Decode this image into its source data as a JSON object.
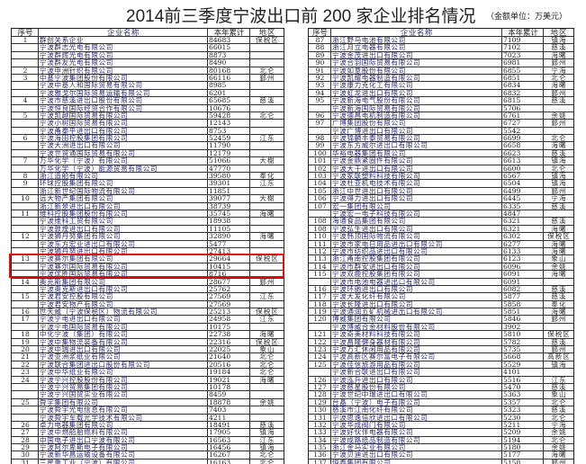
{
  "title": "2014前三季度宁波出口前 200 家企业排名情况",
  "unit_note": "（金额单位：万美元）",
  "columns": [
    "序号",
    "企业名称",
    "本年累计",
    "地区"
  ],
  "highlight_color": "#e01010",
  "left_rows": [
    [
      "1",
      "群创关系企业",
      "84683",
      "保税区"
    ],
    [
      "",
      "宁波群志光电有限公司",
      "66015",
      ""
    ],
    [
      "",
      "宁波群辉光电有限公司",
      "8873",
      ""
    ],
    [
      "",
      "宁波群友光电有限公司",
      "8490",
      ""
    ],
    [
      "2",
      "宁波申洲针织有限公司",
      "80168",
      "北仑"
    ],
    [
      "3",
      "中基宁波集团股份有限公司",
      "66116",
      "鄞州"
    ],
    [
      "",
      "宁波中基人和国际贸易有限公司",
      "8985",
      ""
    ],
    [
      "",
      "宁波雅戈尔国际贸易运输有限公司",
      "6201",
      ""
    ],
    [
      "4",
      "宁波市慈溪进出口股份有限公司",
      "65685",
      "慈溪"
    ],
    [
      "",
      "宁波恒良国际经贸合作有限公司",
      "10676",
      ""
    ],
    [
      "5",
      "宁波凯越国际贸易有限公司",
      "59428",
      "北仑"
    ],
    [
      "",
      "宁波小树国际贸易有限公司",
      "12143",
      ""
    ],
    [
      "",
      "宁波甬泰平进出口有限公司",
      "8753",
      ""
    ],
    [
      "6",
      "宁波海田控股集团有限公司",
      "52459",
      "江东"
    ],
    [
      "",
      "宁波大洲进出口有限公司",
      "11790",
      ""
    ],
    [
      "",
      "宁波世贸通国际贸易有限公司",
      "12179",
      ""
    ],
    [
      "7",
      "万华化学（宁波）有限公司",
      "51066",
      "大榭"
    ],
    [
      "",
      "万华化学（宁波）能源贸易有限公司",
      "47770",
      ""
    ],
    [
      "8",
      "浙江造船有限公司",
      "39580",
      "奉化"
    ],
    [
      "9",
      "环球控股集团有限公司",
      "39301",
      "江东"
    ],
    [
      "",
      "浙江新世纪国际物流有限公司",
      "11851",
      ""
    ],
    [
      "10",
      "远大物产集团有限公司",
      "39077",
      "大榭"
    ],
    [
      "",
      "浙江新景进出口有限公司",
      "38739",
      ""
    ],
    [
      "11",
      "维科控股集团股份有限公司",
      "35745",
      "海曙"
    ],
    [
      "",
      "宁波维科工贸有限公司",
      "18938",
      ""
    ],
    [
      "",
      "宁波敦煌进出口有限公司",
      "11105",
      ""
    ],
    [
      "12",
      "宁波狮丹努集团有限公司",
      "32890",
      "海曙"
    ],
    [
      "",
      "宁波东方宏业进出口有限公司",
      "5477",
      ""
    ],
    [
      "",
      "宁波狮丹努进出口有限公司",
      "27413",
      ""
    ],
    [
      "13",
      "宁波赛尔集团有限公司",
      "29664",
      "保税区"
    ],
    [
      "",
      "宁波赛尔国际贸易有限公司",
      "10415",
      ""
    ],
    [
      "",
      "宁波优胜国际贸易有限公司",
      "8716",
      ""
    ],
    [
      "14",
      "奥克斯集团有限公司",
      "28677",
      "鄞州"
    ],
    [
      "",
      "宁波奥克斯进出口有限公司",
      "25762",
      ""
    ],
    [
      "15",
      "宁波君安控股有限公司",
      "27569",
      "江东"
    ],
    [
      "",
      "宁波君安物产有限公司",
      "27569",
      ""
    ],
    [
      "16",
      "世天威（宁波保税区）物流有限公司",
      "25213",
      "保税区"
    ],
    [
      "17",
      "宁波宁电进出口有限公司",
      "24958",
      "江东"
    ],
    [
      "",
      "宁波宁电国际贸易有限公司",
      "10175",
      ""
    ],
    [
      "18",
      "中化宁波（集团）有限公司",
      "22738",
      "海曙"
    ],
    [
      "19",
      "宁波中集物流装备有限公司",
      "22316",
      "保税区"
    ],
    [
      "20",
      "宁波中瑞进出口有限公司",
      "22025",
      "象山"
    ],
    [
      "21",
      "宁波亚洲浆纸业有限公司",
      "21640",
      "北仑"
    ],
    [
      "22",
      "宁波联合集团进出口股份有限公司",
      "20516",
      "北仑"
    ],
    [
      "23",
      "宁波中华纸业有限公司",
      "19184",
      "北仑"
    ],
    [
      "24",
      "宁波宁兴控股股份有限公司",
      "19021",
      "海曙"
    ],
    [
      "",
      "宁波宁兴贸易集团有限公司",
      "10178",
      ""
    ],
    [
      "",
      "宁波宁兴国贸实业有限公司",
      "8459",
      ""
    ],
    [
      "25",
      "舜宇集团有限公司",
      "18878",
      "余姚"
    ],
    [
      "",
      "宁波舜宇光电信息有限公司",
      "7403",
      ""
    ],
    [
      "",
      "宁波舜宇车载光学技术有限公司",
      "4211",
      ""
    ],
    [
      "26",
      "卓力电器集团有限公司",
      "18491",
      "慈溪"
    ],
    [
      "27",
      "宁波中燃船舶燃料有限公司",
      "17905",
      "镇海"
    ],
    [
      "28",
      "中国电子进出口宁波有限公司",
      "16563",
      "江东"
    ],
    [
      "29",
      "宁波阿尔卑斯电子有限公司",
      "16456",
      "镇海"
    ],
    [
      "30",
      "宁波新华昌运输设备有限公司",
      "16267",
      "北仑"
    ],
    [
      "31",
      "三星重工业（宁波）有限公司",
      "16163",
      "北仑"
    ]
  ],
  "right_rows": [
    [
      "87",
      "浙江野马电池有限公司",
      "7109",
      "镇海"
    ],
    [
      "88",
      "浙江月立电器有限公司",
      "7102",
      "慈溪"
    ],
    [
      "89",
      "宁波金茂进出口有限公司",
      "7023",
      "海曙"
    ],
    [
      "90",
      "宁波合羽国际贸易有限公司",
      "6981",
      "鄞州"
    ],
    [
      "91",
      "宁波如意股份有限公司",
      "6855",
      "宁海"
    ],
    [
      "92",
      "宁波凯耀电器制造有限公司",
      "6851",
      "北仑"
    ],
    [
      "93",
      "宁波康力克化工有限公司",
      "6834",
      "海曙"
    ],
    [
      "94",
      "宁波虹龙进出口有限公司",
      "6832",
      "鄞州"
    ],
    [
      "95",
      "宁波新海电气股份有限公司",
      "6815",
      "慈溪"
    ],
    [
      "",
      "宁波新海国际贸易有限公司",
      "5706",
      ""
    ],
    [
      "96",
      "宁波德昌电机制造有限公司",
      "6761",
      "余姚"
    ],
    [
      "97",
      "广博集团股份有限公司",
      "6727",
      "鄞州"
    ],
    [
      "",
      "宁波广博进出口有限公司",
      "5542",
      ""
    ],
    [
      "98",
      "宁波锦麟丰泰贸易有限公司",
      "6699",
      "北仑"
    ],
    [
      "99",
      "宁波东方威尔进出口有限公司",
      "6658",
      "海曙"
    ],
    [
      "100",
      "华裕电器集团有限公司",
      "6623",
      "慈溪"
    ],
    [
      "101",
      "宁波金鼎紧固件有限公司",
      "6613",
      "镇海"
    ],
    [
      "102",
      "宁波大千进出口有限公司",
      "6600",
      "北仑"
    ],
    [
      "103",
      "宁波家联塑料科技有限公司",
      "6567",
      "镇海"
    ],
    [
      "104",
      "宁波杜亚机电技术有限公司",
      "6504",
      "镇海"
    ],
    [
      "105",
      "浙江中世进出口有限公司",
      "6499",
      "鄞州"
    ],
    [
      "106",
      "宁波得力进出口有限公司",
      "6445",
      "宁海"
    ],
    [
      "107",
      "宏一集团有限公司",
      "6335",
      "慈溪"
    ],
    [
      "",
      "宁波宏一电子科技有限公司",
      "4847",
      ""
    ],
    [
      "108",
      "海通食品集团有限公司",
      "6321",
      "慈溪"
    ],
    [
      "108",
      "宁波弘生进出口有限公司",
      "6321",
      "海曙"
    ],
    [
      "110",
      "宁波韩顶国际物流有限公司",
      "6302",
      "保税区"
    ],
    [
      "111",
      "宁波市家电日用品进出口有限公司",
      "6277",
      "海曙"
    ],
    [
      "112",
      "宁波市纺织品进出口有限公司",
      "6133",
      "海曙"
    ],
    [
      "113",
      "浙江甬南控股集团有限公司",
      "6123",
      "象山"
    ],
    [
      "114",
      "宁波市群安进出口有限公司",
      "6096",
      "余姚"
    ],
    [
      "115",
      "宁波双鹿控股集团有限公司",
      "6091",
      "海曙"
    ],
    [
      "",
      "宁波市电池电器进出口有限公司",
      "6091",
      ""
    ],
    [
      "116",
      "宁波环驰进出口有限公司",
      "6082",
      "慈溪"
    ],
    [
      "117",
      "宁波大发化纤有限公司",
      "5877",
      "慈溪"
    ],
    [
      "118",
      "宁波长隆进出口有限公司",
      "5858",
      "奉化"
    ],
    [
      "119",
      "宁波通润五矿机械进出口有限公司",
      "5851",
      "海曙"
    ],
    [
      "120",
      "博威集团有限公司",
      "5846",
      "鄞州"
    ],
    [
      "",
      "宁波博威合金材料股份有限公司",
      "3902",
      ""
    ],
    [
      "121",
      "宁波奇美材料科技有限公司",
      "5810",
      "保税区"
    ],
    [
      "122",
      "宁波昌隆健身器材有限公司",
      "5782",
      "慈溪"
    ],
    [
      "123",
      "宁波万汇休闲用品有限公司",
      "5735",
      "鄞州"
    ],
    [
      "124",
      "宁波高新区赛尔富电子有限公司",
      "5668",
      "高新区"
    ],
    [
      "125",
      "宁波佳信旅游用品有限公司",
      "5529",
      "镇海"
    ],
    [
      "",
      "宁波新合联进出口有限公司",
      "4101",
      ""
    ],
    [
      "126",
      "宁波泓升进出口有限公司",
      "5516",
      "江东"
    ],
    [
      "127",
      "宁波慈星股份有限公司",
      "5470",
      "慈溪"
    ],
    [
      "128",
      "宁波世纪中瑞进出口有限公司",
      "5363",
      "象山"
    ],
    [
      "129",
      "台晶（宁波）电子有限公司",
      "5357",
      "北仑"
    ],
    [
      "130",
      "慈溪市江南化纤有限公司",
      "5323",
      "慈溪"
    ],
    [
      "131",
      "宁波思逸倍欣进出口有限公司",
      "5230",
      "北仑"
    ],
    [
      "132",
      "宁波华成阀门有限公司",
      "5211",
      "宁海"
    ],
    [
      "133",
      "宁波好伙伴电器有限公司",
      "5209",
      "余姚"
    ],
    [
      "134",
      "宁波成路纸品制造有限公司",
      "5194",
      "北仑"
    ],
    [
      "135",
      "浙江金马实业有限公司",
      "5180",
      "余姚"
    ],
    [
      "136",
      "宁波贝迪进出口有限公司",
      "5177",
      "海曙"
    ],
    [
      "137",
      "恒泰集团有限公司",
      "5158",
      "鄞州"
    ]
  ]
}
